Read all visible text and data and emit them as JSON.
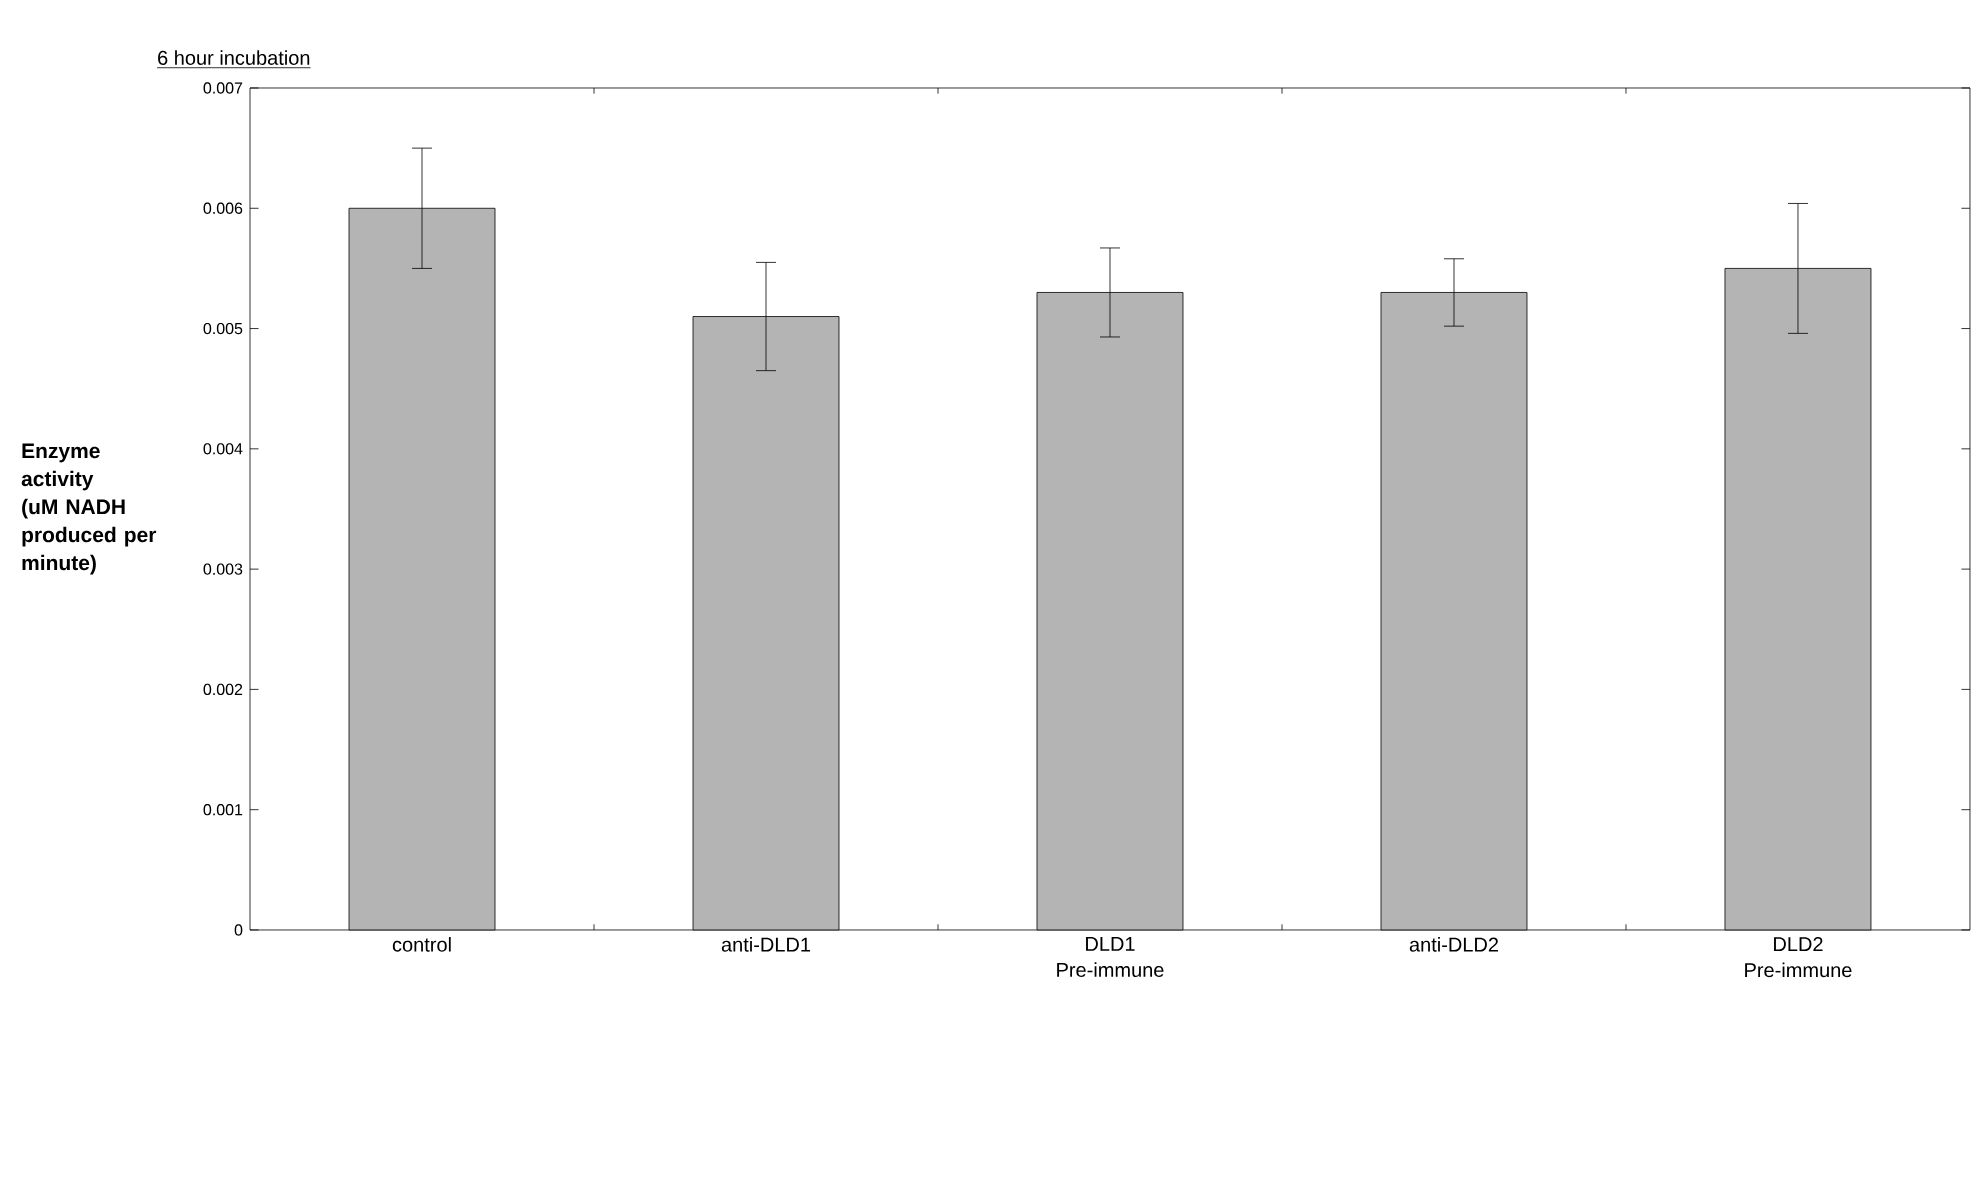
{
  "chart_data": {
    "type": "bar",
    "title": "6 hour incubation",
    "ylabel": "Enzyme activity (uM NADH produced per minute)",
    "categories": [
      "control",
      "anti-DLD1",
      "DLD1 Pre-immune",
      "anti-DLD2",
      "DLD2 Pre-immune"
    ],
    "values": [
      0.006,
      0.0051,
      0.0053,
      0.0053,
      0.0055
    ],
    "errors": [
      0.0005,
      0.00045,
      0.00037,
      0.00028,
      0.00054
    ],
    "color": "#b4b4b4",
    "ylim": [
      0,
      0.007
    ],
    "yticks": [
      0,
      0.001,
      0.002,
      0.003,
      0.004,
      0.005,
      0.006,
      0.007
    ],
    "grid": false
  }
}
